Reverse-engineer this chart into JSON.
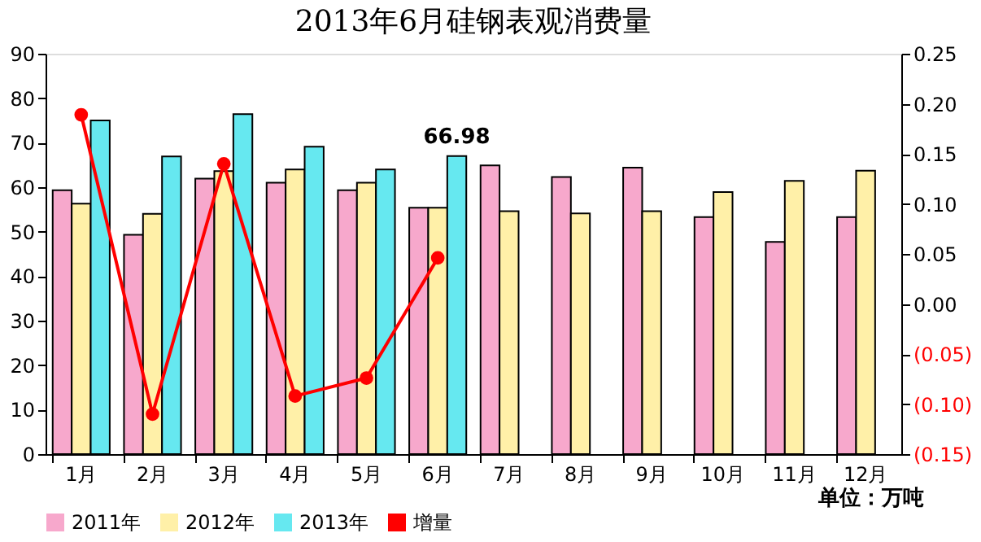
{
  "chart_data": {
    "type": "bar",
    "title": "2013年6月硅钢表观消费量",
    "categories": [
      "1月",
      "2月",
      "3月",
      "4月",
      "5月",
      "6月",
      "7月",
      "8月",
      "9月",
      "10月",
      "11月",
      "12月"
    ],
    "series": [
      {
        "name": "2011年",
        "color": "#f7a8cc",
        "values": [
          59.3,
          49.3,
          61.9,
          61,
          59.3,
          55.4,
          64.9,
          62.3,
          64.4,
          53.3,
          47.7,
          53.3
        ]
      },
      {
        "name": "2012年",
        "color": "#fff0a8",
        "values": [
          56.3,
          54,
          63.6,
          64,
          61,
          55.4,
          54.6,
          54.1,
          54.6,
          58.9,
          61.4,
          63.7
        ]
      },
      {
        "name": "2013年",
        "color": "#66e8f0",
        "values": [
          75,
          66.9,
          76.4,
          69.1,
          64,
          66.98,
          null,
          null,
          null,
          null,
          null,
          null
        ],
        "value_labels": [
          null,
          null,
          null,
          null,
          null,
          "66.98",
          null,
          null,
          null,
          null,
          null,
          null
        ]
      },
      {
        "name": "增量",
        "type": "line",
        "axis": "y2",
        "color": "#ff0000",
        "marker": "circle",
        "values": [
          0.189,
          -0.11,
          0.14,
          -0.092,
          -0.074,
          0.046,
          null,
          null,
          null,
          null,
          null,
          null
        ]
      }
    ],
    "ylim": [
      0,
      90
    ],
    "yticks": [
      0,
      10,
      20,
      30,
      40,
      50,
      60,
      70,
      80,
      90
    ],
    "y2lim": [
      -0.15,
      0.25
    ],
    "y2ticks": [
      {
        "value": -0.15,
        "label": "(0.15)"
      },
      {
        "value": -0.1,
        "label": "(0.10)"
      },
      {
        "value": -0.05,
        "label": "(0.05)"
      },
      {
        "value": 0,
        "label": "0.00"
      },
      {
        "value": 0.05,
        "label": "0.05"
      },
      {
        "value": 0.1,
        "label": "0.10"
      },
      {
        "value": 0.15,
        "label": "0.15"
      },
      {
        "value": 0.2,
        "label": "0.20"
      },
      {
        "value": 0.25,
        "label": "0.25"
      }
    ],
    "legend": "bottom",
    "grid": false,
    "annotations": [
      "单位：万吨"
    ]
  }
}
